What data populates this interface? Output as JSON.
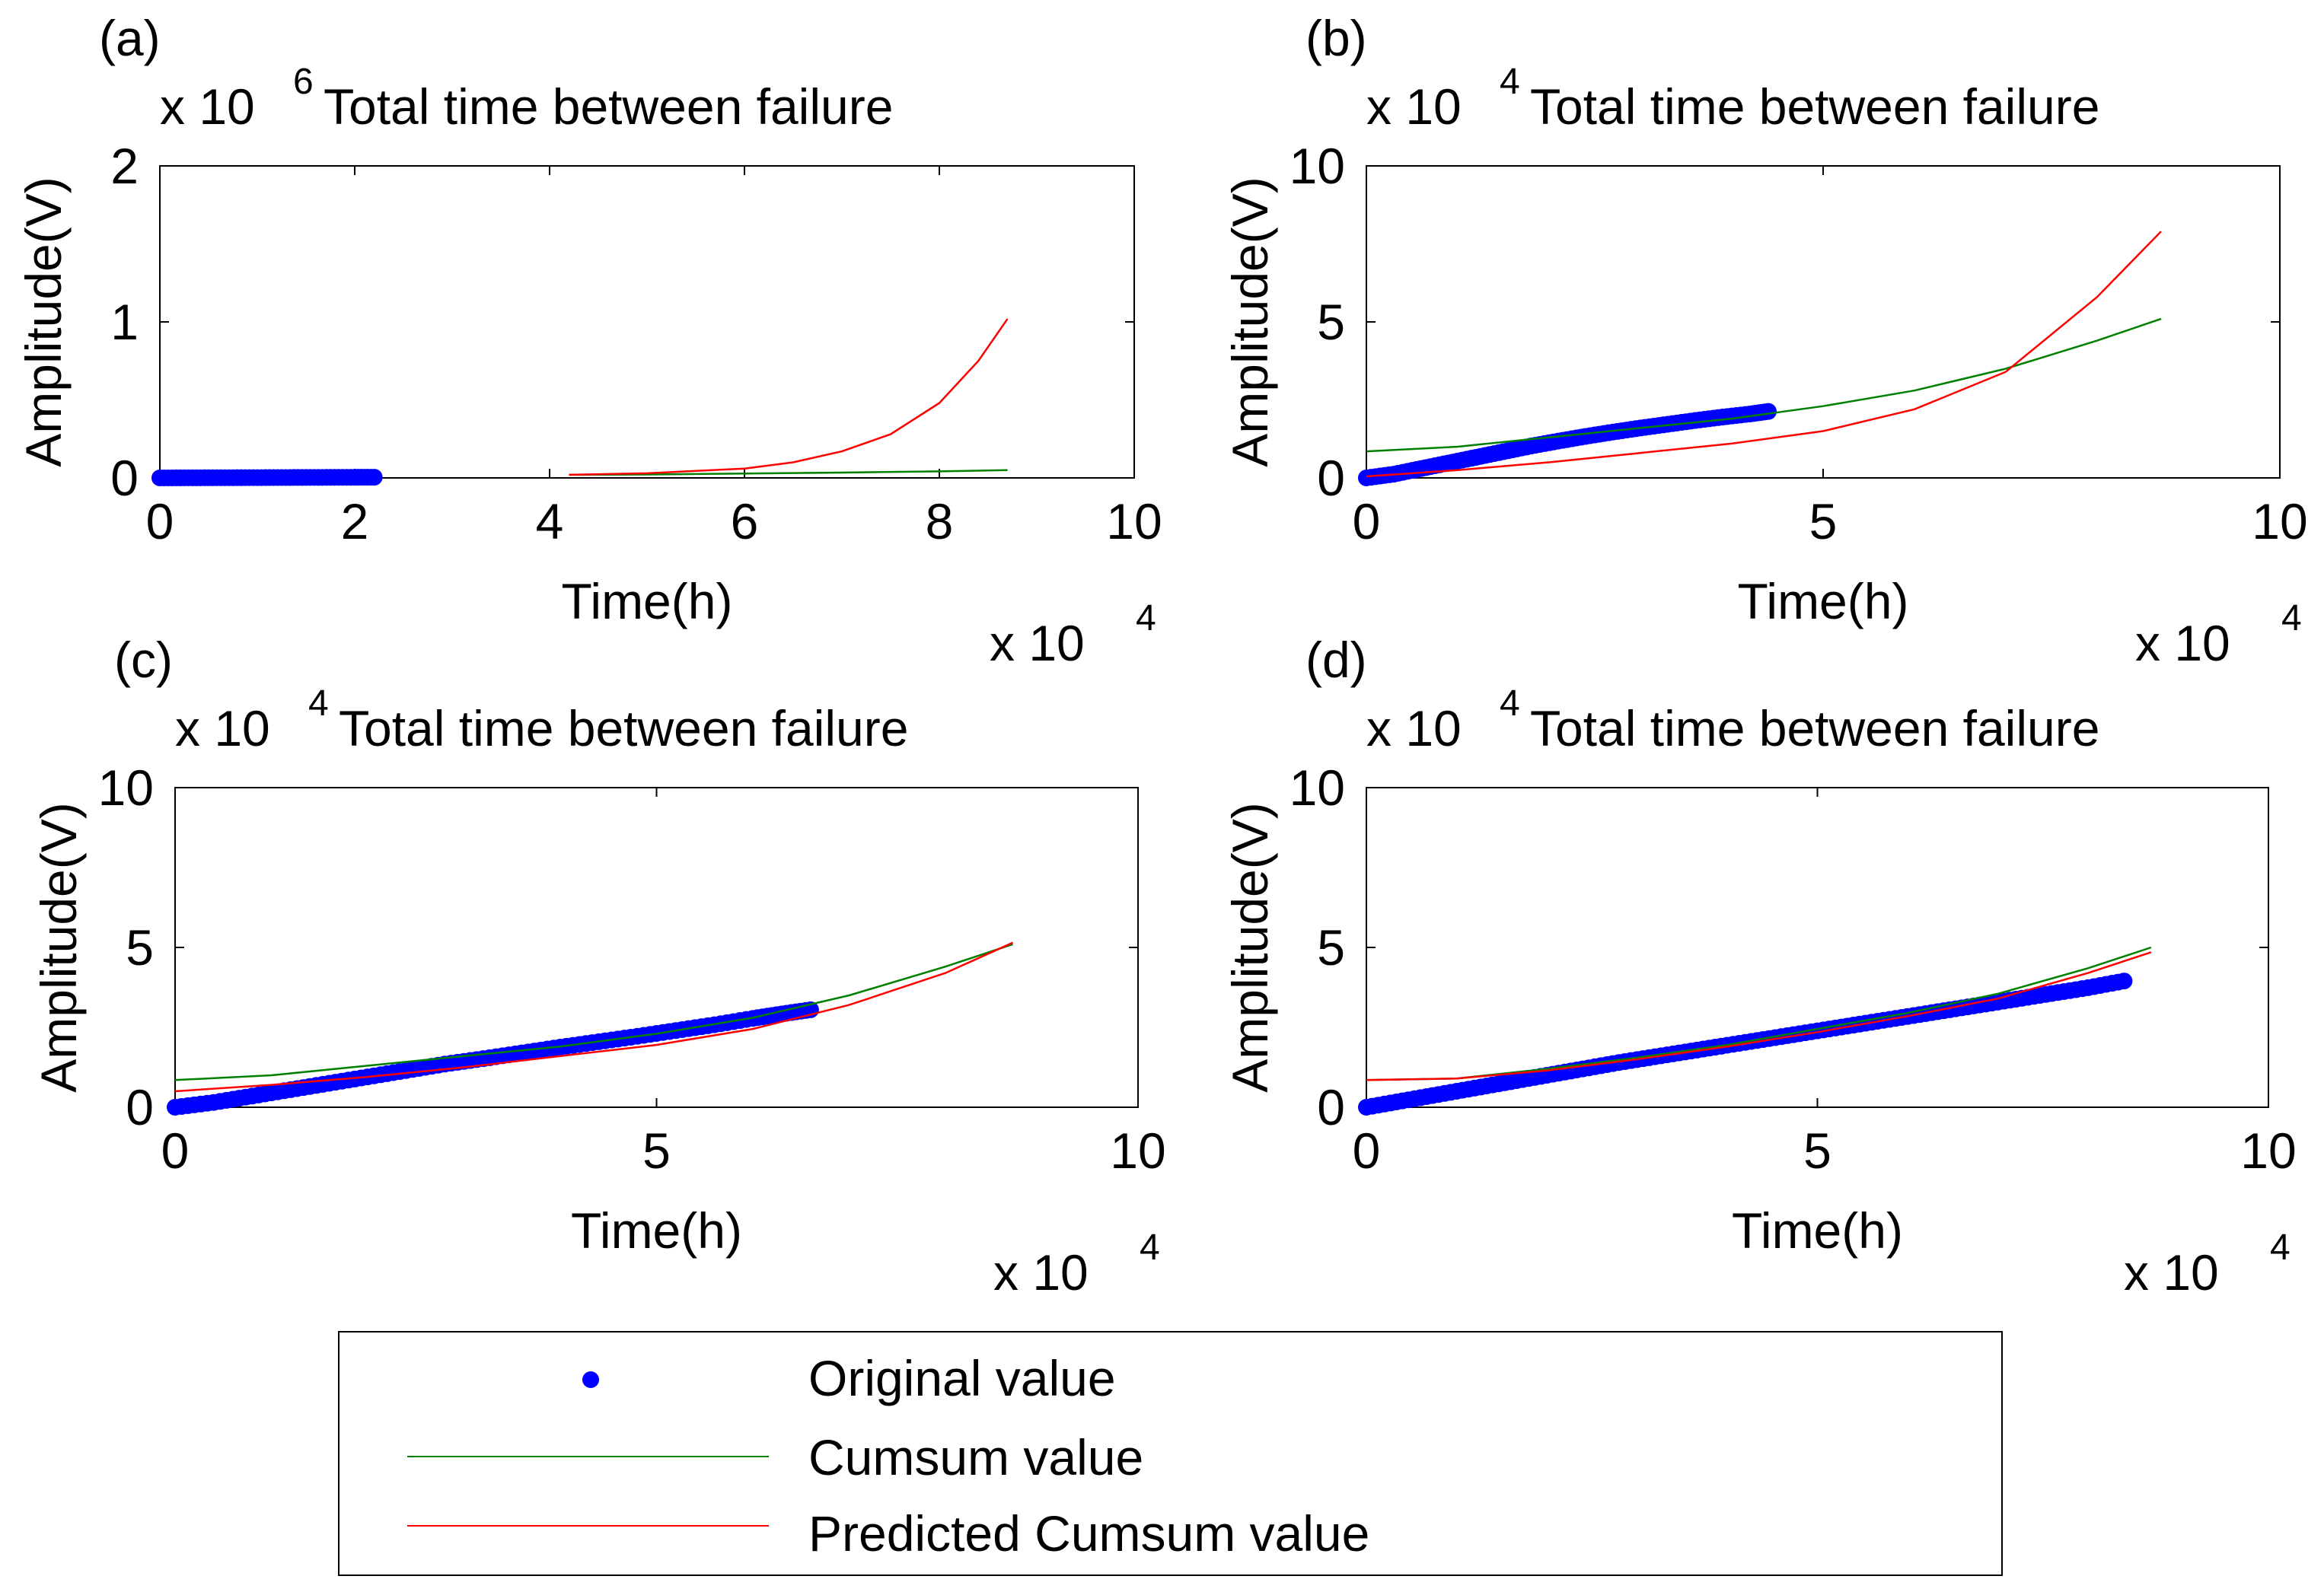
{
  "figure": {
    "legend": {
      "entries": [
        {
          "label": "Original value",
          "color": "#0000ff",
          "kind": "marker"
        },
        {
          "label": "Cumsum value",
          "color": "#008000",
          "kind": "line"
        },
        {
          "label": "Predicted Cumsum value",
          "color": "#ff0000",
          "kind": "line"
        }
      ]
    }
  },
  "chart_data": [
    {
      "panel_label": "(a)",
      "type": "line",
      "title": "Total time between failure",
      "xlabel": "Time(h)",
      "ylabel": "Amplitude(V)",
      "x_multiplier": "x 10",
      "x_exponent": "4",
      "y_multiplier": "x 10",
      "y_exponent": "6",
      "xlim": [
        0,
        10
      ],
      "ylim": [
        0,
        2
      ],
      "xticks": [
        0,
        2,
        4,
        6,
        8,
        10
      ],
      "yticks": [
        0,
        1,
        2
      ],
      "grid": false,
      "series": [
        {
          "name": "Original value",
          "kind": "scatter",
          "color": "#0000ff",
          "x": [
            0,
            0.25,
            0.5,
            0.75,
            1.0,
            1.25,
            1.5,
            1.75,
            2.0,
            2.2
          ],
          "y": [
            0,
            0.0005,
            0.001,
            0.0015,
            0.002,
            0.0025,
            0.003,
            0.0035,
            0.004,
            0.0045
          ]
        },
        {
          "name": "Cumsum value",
          "kind": "line",
          "color": "#008000",
          "x": [
            4.2,
            5,
            6,
            7,
            8,
            8.7
          ],
          "y": [
            0.02,
            0.022,
            0.028,
            0.034,
            0.042,
            0.05
          ]
        },
        {
          "name": "Predicted Cumsum value",
          "kind": "line",
          "color": "#ff0000",
          "x": [
            4.2,
            5,
            6,
            6.5,
            7,
            7.5,
            8,
            8.4,
            8.7
          ],
          "y": [
            0.02,
            0.03,
            0.06,
            0.1,
            0.17,
            0.28,
            0.48,
            0.75,
            1.02
          ]
        }
      ]
    },
    {
      "panel_label": "(b)",
      "type": "line",
      "title": "Total time between failure",
      "xlabel": "Time(h)",
      "ylabel": "Amplitude(V)",
      "x_multiplier": "x 10",
      "x_exponent": "4",
      "y_multiplier": "x 10",
      "y_exponent": "4",
      "xlim": [
        0,
        10
      ],
      "ylim": [
        0,
        10
      ],
      "xticks": [
        0,
        5,
        10
      ],
      "yticks": [
        0,
        5,
        10
      ],
      "grid": false,
      "series": [
        {
          "name": "Original value",
          "kind": "scatter",
          "color": "#0000ff",
          "x": [
            0,
            0.3,
            0.6,
            0.9,
            1.2,
            1.5,
            1.8,
            2.1,
            2.4,
            2.7,
            3.0,
            3.3,
            3.6,
            3.9,
            4.2,
            4.4
          ],
          "y": [
            0,
            0.12,
            0.3,
            0.48,
            0.66,
            0.84,
            1.02,
            1.18,
            1.33,
            1.47,
            1.6,
            1.72,
            1.84,
            1.95,
            2.05,
            2.13
          ]
        },
        {
          "name": "Cumsum value",
          "kind": "line",
          "color": "#008000",
          "x": [
            0,
            1,
            2,
            3,
            4,
            5,
            6,
            7,
            8,
            8.7
          ],
          "y": [
            0.85,
            1.0,
            1.3,
            1.6,
            1.9,
            2.3,
            2.8,
            3.5,
            4.4,
            5.1
          ]
        },
        {
          "name": "Predicted Cumsum value",
          "kind": "line",
          "color": "#ff0000",
          "x": [
            0,
            1,
            2,
            3,
            4,
            5,
            6,
            7,
            8,
            8.7
          ],
          "y": [
            0.05,
            0.25,
            0.5,
            0.8,
            1.1,
            1.5,
            2.2,
            3.4,
            5.8,
            7.9
          ]
        }
      ]
    },
    {
      "panel_label": "(c)",
      "type": "line",
      "title": "Total time between failure",
      "xlabel": "Time(h)",
      "ylabel": "Amplitude(V)",
      "x_multiplier": "x 10",
      "x_exponent": "4",
      "y_multiplier": "x 10",
      "y_exponent": "4",
      "xlim": [
        0,
        10
      ],
      "ylim": [
        0,
        10
      ],
      "xticks": [
        0,
        5,
        10
      ],
      "yticks": [
        0,
        5,
        10
      ],
      "grid": false,
      "series": [
        {
          "name": "Original value",
          "kind": "scatter",
          "color": "#0000ff",
          "x": [
            0,
            0.4,
            0.8,
            1.2,
            1.6,
            2.0,
            2.4,
            2.8,
            3.2,
            3.6,
            4.0,
            4.4,
            4.8,
            5.2,
            5.6,
            6.0,
            6.3,
            6.6
          ],
          "y": [
            0,
            0.15,
            0.35,
            0.55,
            0.75,
            0.95,
            1.15,
            1.35,
            1.52,
            1.7,
            1.88,
            2.05,
            2.22,
            2.4,
            2.58,
            2.78,
            2.92,
            3.05
          ]
        },
        {
          "name": "Cumsum value",
          "kind": "line",
          "color": "#008000",
          "x": [
            0,
            1,
            2,
            3,
            4,
            5,
            6,
            7,
            8,
            8.7
          ],
          "y": [
            0.85,
            1.0,
            1.3,
            1.6,
            1.9,
            2.3,
            2.8,
            3.5,
            4.4,
            5.1
          ]
        },
        {
          "name": "Predicted Cumsum value",
          "kind": "line",
          "color": "#ff0000",
          "x": [
            0,
            1,
            2,
            3,
            4,
            5,
            6,
            7,
            8,
            8.7
          ],
          "y": [
            0.5,
            0.7,
            0.95,
            1.25,
            1.6,
            1.95,
            2.45,
            3.2,
            4.2,
            5.15
          ]
        }
      ]
    },
    {
      "panel_label": "(d)",
      "type": "line",
      "title": "Total time between failure",
      "xlabel": "Time(h)",
      "ylabel": "Amplitude(V)",
      "x_multiplier": "x 10",
      "x_exponent": "4",
      "y_multiplier": "x 10",
      "y_exponent": "4",
      "xlim": [
        0,
        10
      ],
      "ylim": [
        0,
        10
      ],
      "xticks": [
        0,
        5,
        10
      ],
      "yticks": [
        0,
        5,
        10
      ],
      "grid": false,
      "series": [
        {
          "name": "Original value",
          "kind": "scatter",
          "color": "#0000ff",
          "x": [
            0,
            0.4,
            0.8,
            1.2,
            1.6,
            2.0,
            2.4,
            2.8,
            3.2,
            3.6,
            4.0,
            4.4,
            4.8,
            5.2,
            5.6,
            6.0,
            6.4,
            6.8,
            7.2,
            7.6,
            8.0,
            8.4
          ],
          "y": [
            0,
            0.2,
            0.4,
            0.6,
            0.8,
            1.0,
            1.2,
            1.4,
            1.58,
            1.76,
            1.94,
            2.12,
            2.3,
            2.48,
            2.66,
            2.84,
            3.02,
            3.2,
            3.38,
            3.56,
            3.74,
            3.95
          ]
        },
        {
          "name": "Cumsum value",
          "kind": "line",
          "color": "#008000",
          "x": [
            0,
            1,
            2,
            3,
            4,
            5,
            6,
            7,
            8,
            8.7
          ],
          "y": [
            0.85,
            0.9,
            1.2,
            1.55,
            1.95,
            2.45,
            2.95,
            3.55,
            4.35,
            5.0
          ]
        },
        {
          "name": "Predicted Cumsum value",
          "kind": "line",
          "color": "#ff0000",
          "x": [
            0,
            1,
            2,
            3,
            4,
            5,
            6,
            7,
            8,
            8.7
          ],
          "y": [
            0.85,
            0.9,
            1.15,
            1.5,
            1.9,
            2.35,
            2.85,
            3.4,
            4.2,
            4.85
          ]
        }
      ]
    }
  ]
}
